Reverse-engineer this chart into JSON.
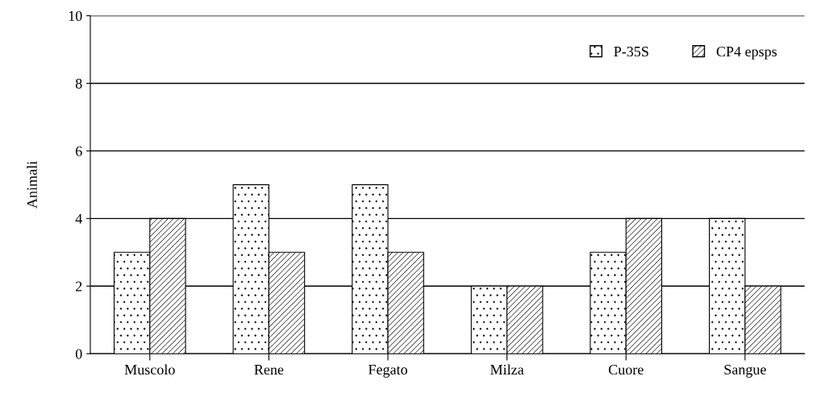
{
  "chart_data": {
    "type": "bar",
    "ylabel": "Animali",
    "categories": [
      "Muscolo",
      "Rene",
      "Fegato",
      "Milza",
      "Cuore",
      "Sangue"
    ],
    "series": [
      {
        "name": "P-35S",
        "color": "#000000",
        "values": [
          3,
          5,
          5,
          2,
          3,
          4
        ]
      },
      {
        "name": "CP4 epsps",
        "color": "#000000",
        "values": [
          4,
          3,
          3,
          2,
          4,
          2
        ]
      }
    ],
    "ylim": [
      0,
      10
    ],
    "yticks": [
      0,
      2,
      4,
      6,
      8,
      10
    ],
    "grid": "y",
    "legend": "top right"
  }
}
